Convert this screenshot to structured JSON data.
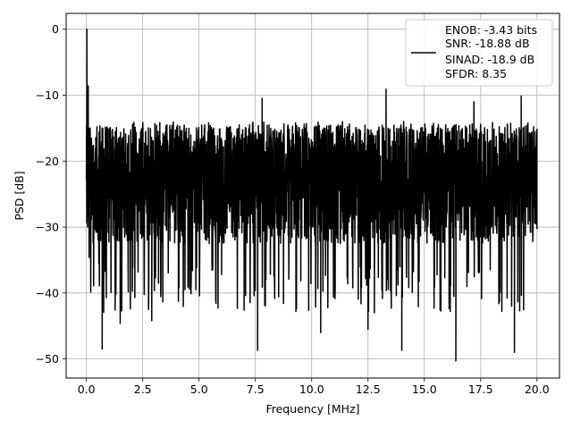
{
  "chart_data": {
    "type": "line",
    "title": "",
    "xlabel": "Frequency [MHz]",
    "ylabel": "PSD [dB]",
    "xlim": [
      -0.9,
      21.0
    ],
    "ylim": [
      -52.9,
      2.4
    ],
    "xticks": [
      0.0,
      2.5,
      5.0,
      7.5,
      10.0,
      12.5,
      15.0,
      17.5,
      20.0
    ],
    "xtick_labels": [
      "0.0",
      "2.5",
      "5.0",
      "7.5",
      "10.0",
      "12.5",
      "15.0",
      "17.5",
      "20.0"
    ],
    "yticks": [
      0,
      -10,
      -20,
      -30,
      -40,
      -50
    ],
    "ytick_labels": [
      "0",
      "−10",
      "−20",
      "−30",
      "−40",
      "−50"
    ],
    "grid": true,
    "line_color": "#000000",
    "series": [
      {
        "x_start": 0.0,
        "x_end": 20.0,
        "noise_floor_mean": -23.5,
        "noise_upper_envelope": -12.0,
        "noise_lower_envelope": -50.3,
        "points": [
          [
            0.0,
            -22.9
          ],
          [
            0.02,
            0.0
          ],
          [
            0.05,
            -30.0
          ],
          [
            0.08,
            -8.6
          ],
          [
            0.12,
            -34.6
          ],
          [
            0.16,
            -16.5
          ],
          [
            0.2,
            -27.4
          ],
          [
            0.25,
            -18.0
          ],
          [
            0.32,
            -38.9
          ],
          [
            0.4,
            -19.2
          ],
          [
            0.55,
            -35.5
          ],
          [
            0.7,
            -48.5
          ],
          [
            1.5,
            -44.6
          ],
          [
            1.9,
            -29.5
          ],
          [
            2.9,
            -44.2
          ],
          [
            3.0,
            -20.0
          ],
          [
            3.2,
            -38.5
          ],
          [
            6.0,
            -37.2
          ],
          [
            7.0,
            -42.6
          ],
          [
            7.4,
            -30.8
          ],
          [
            7.6,
            -48.7
          ],
          [
            7.8,
            -10.5
          ],
          [
            9.3,
            -42.8
          ],
          [
            10.4,
            -46.0
          ],
          [
            11.6,
            -38.6
          ],
          [
            12.5,
            -45.5
          ],
          [
            13.3,
            -9.1
          ],
          [
            14.0,
            -48.7
          ],
          [
            16.4,
            -50.3
          ],
          [
            17.2,
            -11.0
          ],
          [
            19.0,
            -49.0
          ],
          [
            19.3,
            -10.1
          ],
          [
            20.0,
            -30.3
          ]
        ]
      }
    ],
    "legend": {
      "placement": "top-right",
      "entries": [
        "ENOB: -3.43 bits",
        "SNR: -18.88 dB",
        "SINAD: -18.9 dB",
        "SFDR: 8.35"
      ]
    }
  }
}
